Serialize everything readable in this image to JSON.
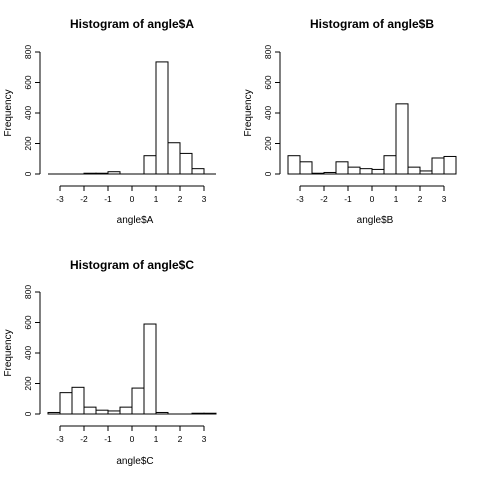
{
  "chart_data": [
    {
      "type": "bar",
      "title": "Histogram of angle$A",
      "xlabel": "angle$A",
      "ylabel": "Frequency",
      "xlim": [
        -3.5,
        3.5
      ],
      "ylim": [
        0,
        800
      ],
      "x_ticks": [
        "-3",
        "-2",
        "-1",
        "0",
        "1",
        "2",
        "3"
      ],
      "y_ticks": [
        "0",
        "200",
        "400",
        "600",
        "800"
      ],
      "bin_edges": [
        -3.5,
        -3.0,
        -2.5,
        -2.0,
        -1.5,
        -1.0,
        -0.5,
        0.0,
        0.5,
        1.0,
        1.5,
        2.0,
        2.5,
        3.0,
        3.5
      ],
      "values": [
        0,
        0,
        0,
        5,
        5,
        15,
        0,
        0,
        120,
        735,
        205,
        135,
        35,
        0
      ]
    },
    {
      "type": "bar",
      "title": "Histogram of angle$B",
      "xlabel": "angle$B",
      "ylabel": "Frequency",
      "xlim": [
        -3.5,
        3.5
      ],
      "ylim": [
        0,
        800
      ],
      "x_ticks": [
        "-3",
        "-2",
        "-1",
        "0",
        "1",
        "2",
        "3"
      ],
      "y_ticks": [
        "0",
        "200",
        "400",
        "600",
        "800"
      ],
      "bin_edges": [
        -3.5,
        -3.0,
        -2.5,
        -2.0,
        -1.5,
        -1.0,
        -0.5,
        0.0,
        0.5,
        1.0,
        1.5,
        2.0,
        2.5,
        3.0,
        3.5
      ],
      "values": [
        120,
        80,
        5,
        10,
        80,
        45,
        35,
        30,
        120,
        460,
        45,
        20,
        105,
        115
      ]
    },
    {
      "type": "bar",
      "title": "Histogram of angle$C",
      "xlabel": "angle$C",
      "ylabel": "Frequency",
      "xlim": [
        -3.5,
        3.5
      ],
      "ylim": [
        0,
        800
      ],
      "x_ticks": [
        "-3",
        "-2",
        "-1",
        "0",
        "1",
        "2",
        "3"
      ],
      "y_ticks": [
        "0",
        "200",
        "400",
        "600",
        "800"
      ],
      "bin_edges": [
        -3.5,
        -3.0,
        -2.5,
        -2.0,
        -1.5,
        -1.0,
        -0.5,
        0.0,
        0.5,
        1.0,
        1.5,
        2.0,
        2.5,
        3.0,
        3.5
      ],
      "values": [
        10,
        140,
        175,
        45,
        25,
        20,
        45,
        170,
        590,
        10,
        0,
        0,
        5,
        5
      ]
    }
  ]
}
